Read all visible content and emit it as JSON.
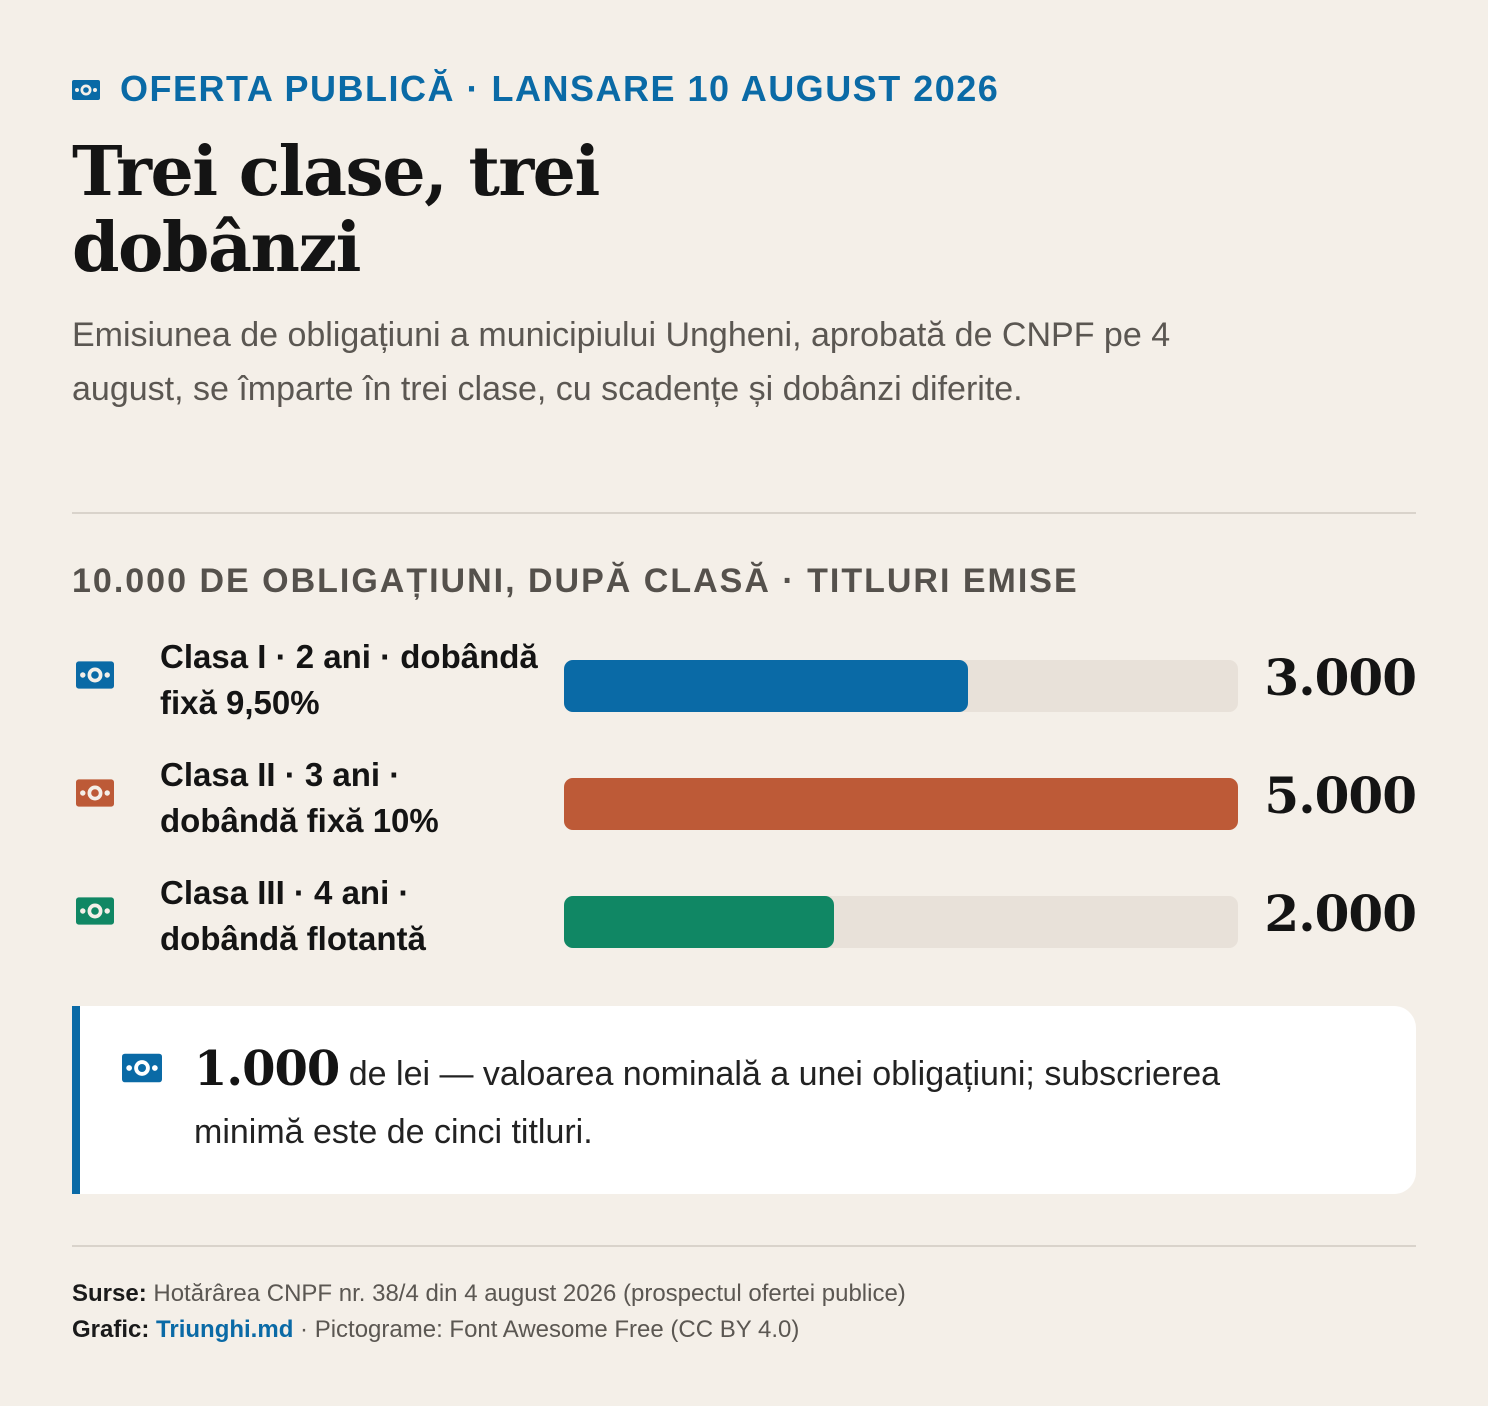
{
  "kicker": "OFERTA PUBLICĂ · LANSARE 10 AUGUST 2026",
  "headline": "Trei clase, trei dobânzi",
  "subtitle": "Emisiunea de obligațiuni a municipiului Ungheni, aprobată de CNPF pe 4 august, se împarte în trei clase, cu scadențe și dobânzi diferite.",
  "icons": {
    "kicker": "money-bill-icon",
    "rows": "money-bill-icon",
    "note": "money-bill-icon"
  },
  "colors": {
    "accent": "#0a6aa6",
    "class1": "#0a6aa6",
    "class2": "#bd5a37",
    "class3": "#108764",
    "track": "#e8e1d9"
  },
  "chart_data": {
    "type": "bar",
    "title": "10.000 DE OBLIGAȚIUNI, DUPĂ CLASĂ · TITLURI EMISE",
    "categories": [
      "Clasa I · 2 ani · dobândă fixă 9,50%",
      "Clasa II · 3 ani · dobândă fixă 10%",
      "Clasa III · 4 ani · dobândă flotantă"
    ],
    "values": [
      3000,
      5000,
      2000
    ],
    "value_labels": [
      "3.000",
      "5.000",
      "2.000"
    ],
    "max": 5000
  },
  "note": {
    "big": "1.000",
    "text": " de lei — valoarea nominală a unei obligațiuni; subscrierea minimă este de cinci titluri."
  },
  "footer": {
    "sources_label": "Surse:",
    "sources_text": " Hotărârea CNPF nr. 38/4 din 4 august 2026 (prospectul ofertei publice)",
    "graphic_label": "Grafic:",
    "graphic_link": "Triunghi.md",
    "graphic_text": " · Pictograme: Font Awesome Free (CC BY 4.0)"
  }
}
